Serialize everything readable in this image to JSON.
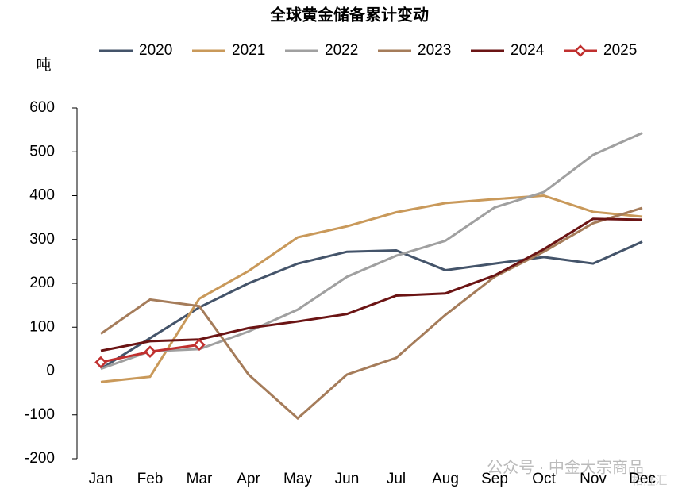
{
  "chart_data": {
    "type": "line",
    "title": "全球黄金储备累计变动",
    "y_label": "吨",
    "categories": [
      "Jan",
      "Feb",
      "Mar",
      "Apr",
      "May",
      "Jun",
      "Jul",
      "Aug",
      "Sep",
      "Oct",
      "Nov",
      "Dec"
    ],
    "series": [
      {
        "name": "2020",
        "color": "#44546a",
        "values": [
          5,
          75,
          145,
          200,
          245,
          272,
          275,
          230,
          245,
          260,
          245,
          295
        ]
      },
      {
        "name": "2021",
        "color": "#c9995a",
        "values": [
          -25,
          -13,
          165,
          228,
          305,
          330,
          362,
          383,
          392,
          400,
          363,
          352
        ]
      },
      {
        "name": "2022",
        "color": "#a0a0a0",
        "values": [
          5,
          45,
          50,
          90,
          140,
          215,
          263,
          297,
          373,
          408,
          493,
          543
        ]
      },
      {
        "name": "2023",
        "color": "#a57c5a",
        "values": [
          85,
          163,
          148,
          -8,
          -108,
          -8,
          30,
          128,
          215,
          272,
          337,
          372
        ]
      },
      {
        "name": "2024",
        "color": "#6b1414",
        "values": [
          46,
          68,
          72,
          98,
          113,
          130,
          172,
          177,
          218,
          278,
          347,
          345
        ]
      },
      {
        "name": "2025",
        "color": "#c0302f",
        "marker": "diamond",
        "values": [
          20,
          44,
          60,
          null,
          null,
          null,
          null,
          null,
          null,
          null,
          null,
          null
        ]
      }
    ],
    "ylim": [
      -200,
      600
    ],
    "yticks": [
      -200,
      -100,
      0,
      100,
      200,
      300,
      400,
      500,
      600
    ],
    "legend": "top",
    "watermark": "公众号 · 中金大宗商品",
    "watermark2": "格隆汇"
  }
}
